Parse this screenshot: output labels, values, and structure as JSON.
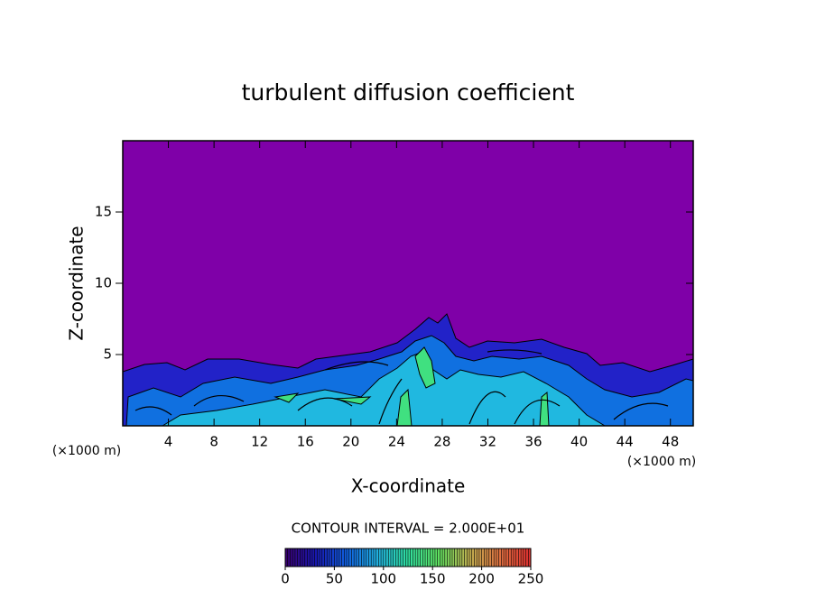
{
  "chart_data": {
    "type": "contour",
    "title": "turbulent diffusion coefficient",
    "xlabel": "X-coordinate",
    "ylabel": "Z-coordinate",
    "x_unit": "(×1000 m)",
    "xlim": [
      0,
      50
    ],
    "xticks": [
      4,
      8,
      12,
      16,
      20,
      24,
      28,
      32,
      36,
      40,
      44,
      48
    ],
    "ylim": [
      0,
      20
    ],
    "yticks": [
      5,
      10,
      15
    ],
    "background_color": "#7f00a8",
    "contour_interval_label": "CONTOUR INTERVAL = 2.000E+01",
    "colorbar": {
      "lim": [
        0,
        250
      ],
      "ticks": [
        0,
        50,
        100,
        150,
        200,
        250
      ],
      "colors": [
        "#3a0070",
        "#1818b0",
        "#1060e0",
        "#20b0e0",
        "#30e0a0",
        "#60e060",
        "#c0b050",
        "#e07040",
        "#e03030"
      ]
    }
  }
}
